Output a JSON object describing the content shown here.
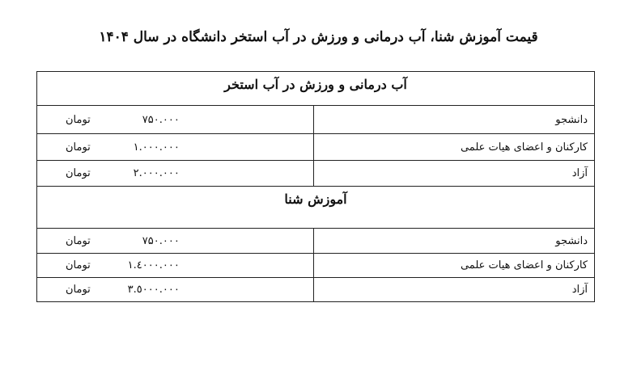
{
  "title": "قیمت آموزش شنا، آب درمانی و ورزش در آب استخر دانشگاه در سال ۱۴۰۴",
  "sections": [
    {
      "heading": "آب درمانی و ورزش در آب استخر",
      "rows": [
        {
          "label": "دانشجو",
          "amount": "۷۵۰.۰۰۰",
          "unit": "تومان"
        },
        {
          "label": "کارکنان و اعضای هیات علمی",
          "amount": "۱.۰۰۰.۰۰۰",
          "unit": "تومان"
        },
        {
          "label": "آزاد",
          "amount": "۲.۰۰۰.۰۰۰",
          "unit": "تومان"
        }
      ]
    },
    {
      "heading": "آموزش شنا",
      "rows": [
        {
          "label": "دانشجو",
          "amount": "۷۵۰.۰۰۰",
          "unit": "تومان"
        },
        {
          "label": "کارکنان و اعضای هیات علمی",
          "amount": "۱.٤۰۰۰.۰۰۰",
          "unit": "تومان"
        },
        {
          "label": "آزاد",
          "amount": "۳.٥۰۰۰.۰۰۰",
          "unit": "تومان"
        }
      ]
    }
  ]
}
